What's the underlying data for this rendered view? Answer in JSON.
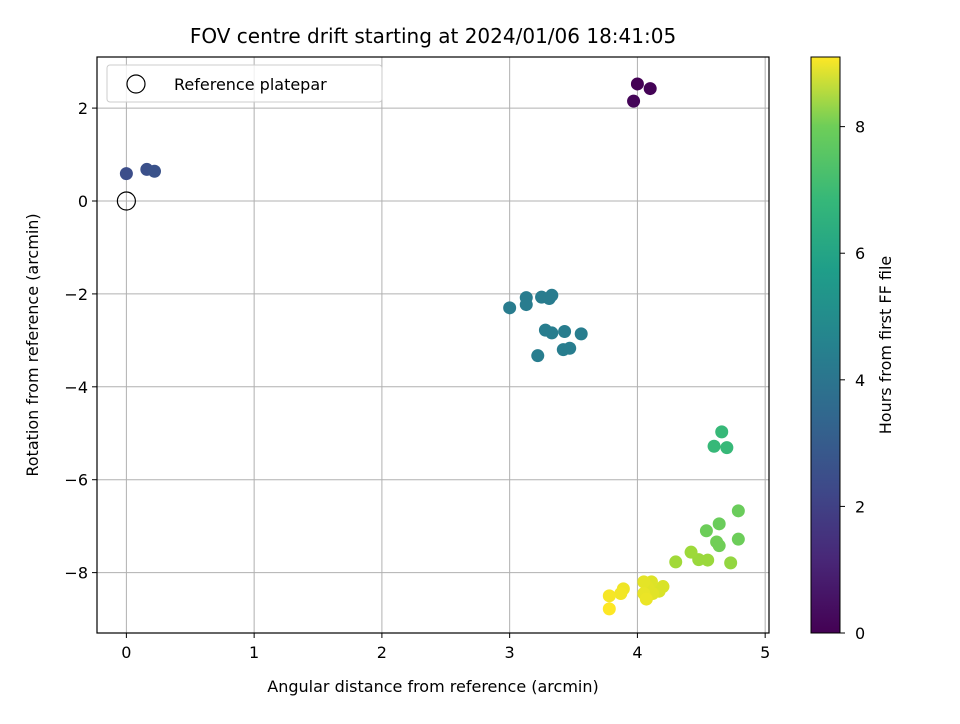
{
  "chart_data": {
    "type": "scatter",
    "title": "FOV centre drift starting at 2024/01/06 18:41:05",
    "xlabel": "Angular distance from reference (arcmin)",
    "ylabel": "Rotation from reference (arcmin)",
    "xlim": [
      -0.23,
      5.03
    ],
    "ylim": [
      -9.3,
      3.1
    ],
    "xticks": [
      0,
      1,
      2,
      3,
      4,
      5
    ],
    "yticks": [
      2,
      0,
      -2,
      -4,
      -6,
      -8
    ],
    "grid": true,
    "legend": {
      "placement": "top-left",
      "entries": [
        "Reference platepar"
      ]
    },
    "reference_point": {
      "x": 0,
      "y": 0,
      "label": "Reference platepar"
    },
    "colorbar": {
      "label": "Hours from first FF file",
      "range": [
        0,
        9.1
      ],
      "ticks": [
        0,
        2,
        4,
        6,
        8
      ],
      "colormap": "viridis"
    },
    "points": [
      {
        "x": 4.0,
        "y": 2.52,
        "h": 0.0
      },
      {
        "x": 4.1,
        "y": 2.42,
        "h": 0.05
      },
      {
        "x": 3.97,
        "y": 2.15,
        "h": 0.1
      },
      {
        "x": 0.0,
        "y": 0.59,
        "h": 2.2
      },
      {
        "x": 0.16,
        "y": 0.68,
        "h": 2.25
      },
      {
        "x": 0.22,
        "y": 0.64,
        "h": 2.3
      },
      {
        "x": 3.0,
        "y": -2.3,
        "h": 3.8
      },
      {
        "x": 3.13,
        "y": -2.08,
        "h": 3.8
      },
      {
        "x": 3.13,
        "y": -2.23,
        "h": 3.8
      },
      {
        "x": 3.25,
        "y": -2.07,
        "h": 3.8
      },
      {
        "x": 3.31,
        "y": -2.1,
        "h": 3.8
      },
      {
        "x": 3.33,
        "y": -2.03,
        "h": 3.8
      },
      {
        "x": 3.28,
        "y": -2.78,
        "h": 3.85
      },
      {
        "x": 3.33,
        "y": -2.84,
        "h": 3.85
      },
      {
        "x": 3.43,
        "y": -2.81,
        "h": 3.85
      },
      {
        "x": 3.56,
        "y": -2.86,
        "h": 3.85
      },
      {
        "x": 3.42,
        "y": -3.2,
        "h": 3.85
      },
      {
        "x": 3.47,
        "y": -3.17,
        "h": 3.85
      },
      {
        "x": 3.22,
        "y": -3.33,
        "h": 3.85
      },
      {
        "x": 4.66,
        "y": -4.97,
        "h": 6.1
      },
      {
        "x": 4.6,
        "y": -5.28,
        "h": 6.1
      },
      {
        "x": 4.7,
        "y": -5.31,
        "h": 6.1
      },
      {
        "x": 4.79,
        "y": -6.67,
        "h": 7.0
      },
      {
        "x": 4.64,
        "y": -6.95,
        "h": 7.0
      },
      {
        "x": 4.54,
        "y": -7.1,
        "h": 7.05
      },
      {
        "x": 4.62,
        "y": -7.34,
        "h": 7.1
      },
      {
        "x": 4.64,
        "y": -7.42,
        "h": 7.1
      },
      {
        "x": 4.79,
        "y": -7.28,
        "h": 7.05
      },
      {
        "x": 4.73,
        "y": -7.79,
        "h": 7.6
      },
      {
        "x": 4.55,
        "y": -7.73,
        "h": 7.7
      },
      {
        "x": 4.48,
        "y": -7.72,
        "h": 7.7
      },
      {
        "x": 4.42,
        "y": -7.56,
        "h": 7.75
      },
      {
        "x": 4.3,
        "y": -7.77,
        "h": 7.8
      },
      {
        "x": 4.2,
        "y": -8.3,
        "h": 8.6
      },
      {
        "x": 4.17,
        "y": -8.4,
        "h": 8.6
      },
      {
        "x": 4.11,
        "y": -8.2,
        "h": 8.65
      },
      {
        "x": 4.12,
        "y": -8.45,
        "h": 8.7
      },
      {
        "x": 4.08,
        "y": -8.32,
        "h": 8.7
      },
      {
        "x": 4.05,
        "y": -8.2,
        "h": 8.75
      },
      {
        "x": 4.05,
        "y": -8.45,
        "h": 8.8
      },
      {
        "x": 4.07,
        "y": -8.57,
        "h": 8.85
      },
      {
        "x": 3.89,
        "y": -8.35,
        "h": 8.9
      },
      {
        "x": 3.87,
        "y": -8.45,
        "h": 8.95
      },
      {
        "x": 3.78,
        "y": -8.5,
        "h": 9.0
      },
      {
        "x": 3.78,
        "y": -8.78,
        "h": 9.1
      }
    ]
  }
}
